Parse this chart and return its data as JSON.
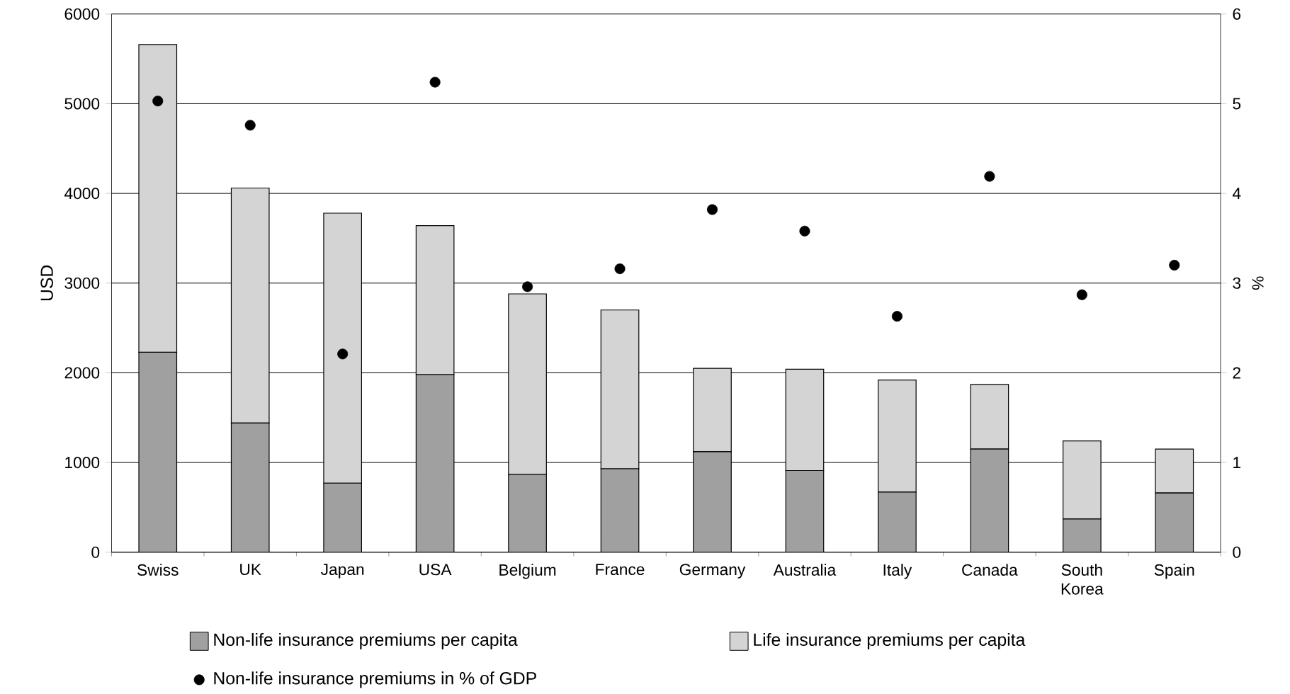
{
  "chart_data": {
    "type": "bar",
    "stacked": true,
    "categories": [
      "Swiss",
      "UK",
      "Japan",
      "USA",
      "Belgium",
      "France",
      "Germany",
      "Australia",
      "Italy",
      "Canada",
      "South Korea",
      "Spain"
    ],
    "series": [
      {
        "name": "Non-life insurance premiums per capita",
        "color": "#a0a0a0",
        "values": [
          2230,
          1440,
          770,
          1980,
          870,
          930,
          1120,
          910,
          670,
          1150,
          370,
          660
        ]
      },
      {
        "name": "Life insurance premiums per capita",
        "color": "#d4d4d4",
        "values": [
          3430,
          2620,
          3010,
          1660,
          2010,
          1770,
          930,
          1130,
          1250,
          720,
          870,
          490
        ]
      },
      {
        "name": "Non-life insurance premiums in % of GDP",
        "type": "scatter",
        "axis": "y2",
        "color": "#000000",
        "marker": "circle",
        "values": [
          5.03,
          4.76,
          2.21,
          5.24,
          2.96,
          3.16,
          3.82,
          3.58,
          2.63,
          4.19,
          2.87,
          3.2
        ]
      }
    ],
    "ylabel": "USD",
    "y2label": "%",
    "ylim": [
      0,
      6000
    ],
    "yticks": [
      0,
      1000,
      2000,
      3000,
      4000,
      5000,
      6000
    ],
    "y2lim": [
      0,
      6
    ],
    "y2ticks": [
      0,
      1,
      2,
      3,
      4,
      5,
      6
    ],
    "grid": "y",
    "legend": "bottom"
  }
}
